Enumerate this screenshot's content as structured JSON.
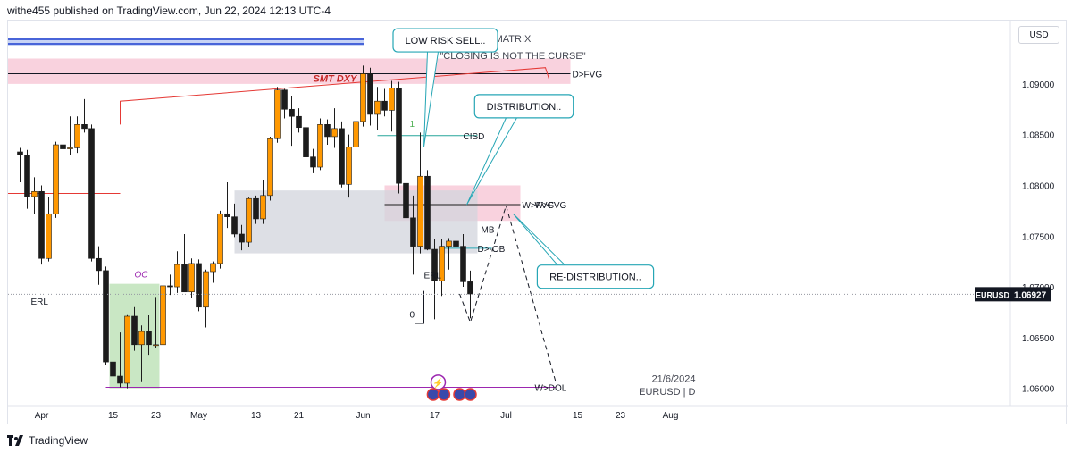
{
  "header": {
    "text": "withe455 published on TradingView.com, Jun 22, 2024 12:13 UTC-4"
  },
  "currency_button": {
    "label": "USD"
  },
  "footer": {
    "brand": "TradingView"
  },
  "colors": {
    "bull": "#ff9800",
    "bear": "#1c1c1c",
    "fvg_zone": "#f7c3d3",
    "ob_zone": "#d1d4dc",
    "oc_zone": "#b7dfb0",
    "callout": "#26a6b5",
    "dol_line": "#9c27b0",
    "smt_line": "#e53935",
    "cisd_line": "#26a69a",
    "price_label_bg": "#131722"
  },
  "chart_data": {
    "type": "candlestick",
    "symbol": "EURUSD",
    "timeframe": "D",
    "date_label": "21/6/2024",
    "titles": [
      "MATRIX",
      "\"CLOSING IS NOT THE CURSE\""
    ],
    "ylim": [
      1.059,
      1.0958
    ],
    "y_ticks": [
      "1.09000",
      "1.08500",
      "1.08000",
      "1.07500",
      "1.07000",
      "1.06500",
      "1.06000"
    ],
    "x_ticks": [
      {
        "label": "Apr",
        "bar": 3
      },
      {
        "label": "15",
        "bar": 13
      },
      {
        "label": "23",
        "bar": 19
      },
      {
        "label": "May",
        "bar": 25
      },
      {
        "label": "13",
        "bar": 33
      },
      {
        "label": "21",
        "bar": 39
      },
      {
        "label": "Jun",
        "bar": 48
      },
      {
        "label": "17",
        "bar": 58
      },
      {
        "label": "Jul",
        "bar": 68
      },
      {
        "label": "15",
        "bar": 78
      },
      {
        "label": "23",
        "bar": 84
      },
      {
        "label": "Aug",
        "bar": 91
      }
    ],
    "current_price": 1.06927,
    "current_label": "EURUSD",
    "candles": [
      {
        "o": 1.0833,
        "h": 1.0837,
        "l": 1.0803,
        "c": 1.083
      },
      {
        "o": 1.083,
        "h": 1.0835,
        "l": 1.0777,
        "c": 1.0789
      },
      {
        "o": 1.0789,
        "h": 1.0808,
        "l": 1.0772,
        "c": 1.0794
      },
      {
        "o": 1.0794,
        "h": 1.08,
        "l": 1.0722,
        "c": 1.0728
      },
      {
        "o": 1.0728,
        "h": 1.0789,
        "l": 1.0725,
        "c": 1.0772
      },
      {
        "o": 1.0772,
        "h": 1.0843,
        "l": 1.0768,
        "c": 1.084
      },
      {
        "o": 1.084,
        "h": 1.087,
        "l": 1.0832,
        "c": 1.0836
      },
      {
        "o": 1.0836,
        "h": 1.0868,
        "l": 1.083,
        "c": 1.0837
      },
      {
        "o": 1.0837,
        "h": 1.0868,
        "l": 1.0832,
        "c": 1.086
      },
      {
        "o": 1.086,
        "h": 1.0885,
        "l": 1.0852,
        "c": 1.0856
      },
      {
        "o": 1.0856,
        "h": 1.086,
        "l": 1.0725,
        "c": 1.0728
      },
      {
        "o": 1.0728,
        "h": 1.074,
        "l": 1.0702,
        "c": 1.0716
      },
      {
        "o": 1.0716,
        "h": 1.072,
        "l": 1.0623,
        "c": 1.0626
      },
      {
        "o": 1.0626,
        "h": 1.064,
        "l": 1.0602,
        "c": 1.0612
      },
      {
        "o": 1.0612,
        "h": 1.0655,
        "l": 1.0601,
        "c": 1.0605
      },
      {
        "o": 1.0605,
        "h": 1.0673,
        "l": 1.06,
        "c": 1.0671
      },
      {
        "o": 1.0671,
        "h": 1.068,
        "l": 1.0637,
        "c": 1.0643
      },
      {
        "o": 1.0643,
        "h": 1.0662,
        "l": 1.0607,
        "c": 1.0656
      },
      {
        "o": 1.0656,
        "h": 1.0672,
        "l": 1.0633,
        "c": 1.0643
      },
      {
        "o": 1.0643,
        "h": 1.069,
        "l": 1.064,
        "c": 1.0643
      },
      {
        "o": 1.0643,
        "h": 1.0703,
        "l": 1.0632,
        "c": 1.0701
      },
      {
        "o": 1.0701,
        "h": 1.0712,
        "l": 1.0692,
        "c": 1.07
      },
      {
        "o": 1.07,
        "h": 1.0735,
        "l": 1.0694,
        "c": 1.0722
      },
      {
        "o": 1.0722,
        "h": 1.0752,
        "l": 1.0698,
        "c": 1.0695
      },
      {
        "o": 1.0695,
        "h": 1.0728,
        "l": 1.0689,
        "c": 1.0723
      },
      {
        "o": 1.0723,
        "h": 1.0727,
        "l": 1.0676,
        "c": 1.068
      },
      {
        "o": 1.068,
        "h": 1.0717,
        "l": 1.066,
        "c": 1.0715
      },
      {
        "o": 1.0715,
        "h": 1.0725,
        "l": 1.0704,
        "c": 1.0723
      },
      {
        "o": 1.0723,
        "h": 1.0775,
        "l": 1.0718,
        "c": 1.0772
      },
      {
        "o": 1.0772,
        "h": 1.0803,
        "l": 1.0758,
        "c": 1.0769
      },
      {
        "o": 1.0769,
        "h": 1.0782,
        "l": 1.0749,
        "c": 1.0752
      },
      {
        "o": 1.0752,
        "h": 1.0761,
        "l": 1.0736,
        "c": 1.0744
      },
      {
        "o": 1.0744,
        "h": 1.0788,
        "l": 1.0739,
        "c": 1.0787
      },
      {
        "o": 1.0787,
        "h": 1.079,
        "l": 1.0762,
        "c": 1.0767
      },
      {
        "o": 1.0767,
        "h": 1.0805,
        "l": 1.0762,
        "c": 1.079
      },
      {
        "o": 1.079,
        "h": 1.0848,
        "l": 1.0785,
        "c": 1.0846
      },
      {
        "o": 1.0846,
        "h": 1.0897,
        "l": 1.0842,
        "c": 1.0894
      },
      {
        "o": 1.0894,
        "h": 1.0895,
        "l": 1.0866,
        "c": 1.0875
      },
      {
        "o": 1.0875,
        "h": 1.0888,
        "l": 1.0839,
        "c": 1.0868
      },
      {
        "o": 1.0868,
        "h": 1.0876,
        "l": 1.0852,
        "c": 1.0857
      },
      {
        "o": 1.0857,
        "h": 1.0868,
        "l": 1.0819,
        "c": 1.0828
      },
      {
        "o": 1.0828,
        "h": 1.0836,
        "l": 1.0812,
        "c": 1.0818
      },
      {
        "o": 1.0818,
        "h": 1.0866,
        "l": 1.0815,
        "c": 1.086
      },
      {
        "o": 1.086,
        "h": 1.0865,
        "l": 1.084,
        "c": 1.0848
      },
      {
        "o": 1.0848,
        "h": 1.0876,
        "l": 1.0837,
        "c": 1.0856
      },
      {
        "o": 1.0856,
        "h": 1.0863,
        "l": 1.0798,
        "c": 1.0801
      },
      {
        "o": 1.0801,
        "h": 1.085,
        "l": 1.0788,
        "c": 1.0838
      },
      {
        "o": 1.0838,
        "h": 1.0885,
        "l": 1.0833,
        "c": 1.0863
      },
      {
        "o": 1.0863,
        "h": 1.0918,
        "l": 1.0858,
        "c": 1.091
      },
      {
        "o": 1.091,
        "h": 1.0916,
        "l": 1.0859,
        "c": 1.087
      },
      {
        "o": 1.087,
        "h": 1.0897,
        "l": 1.0855,
        "c": 1.0883
      },
      {
        "o": 1.0883,
        "h": 1.0895,
        "l": 1.0868,
        "c": 1.0874
      },
      {
        "o": 1.0874,
        "h": 1.0903,
        "l": 1.0853,
        "c": 1.0896
      },
      {
        "o": 1.0896,
        "h": 1.0902,
        "l": 1.0792,
        "c": 1.0802
      },
      {
        "o": 1.0802,
        "h": 1.0822,
        "l": 1.076,
        "c": 1.0768
      },
      {
        "o": 1.0768,
        "h": 1.079,
        "l": 1.0712,
        "c": 1.074
      },
      {
        "o": 1.074,
        "h": 1.0852,
        "l": 1.0733,
        "c": 1.0809
      },
      {
        "o": 1.0809,
        "h": 1.0815,
        "l": 1.0736,
        "c": 1.0737
      },
      {
        "o": 1.0737,
        "h": 1.0747,
        "l": 1.0668,
        "c": 1.0706
      },
      {
        "o": 1.0706,
        "h": 1.0747,
        "l": 1.0691,
        "c": 1.074
      },
      {
        "o": 1.074,
        "h": 1.0748,
        "l": 1.0717,
        "c": 1.0745
      },
      {
        "o": 1.0745,
        "h": 1.0757,
        "l": 1.0721,
        "c": 1.074
      },
      {
        "o": 1.074,
        "h": 1.0752,
        "l": 1.07,
        "c": 1.0705
      },
      {
        "o": 1.0705,
        "h": 1.0716,
        "l": 1.0669,
        "c": 1.0693
      }
    ],
    "zones": [
      {
        "name": "D>FVG",
        "top": 1.0925,
        "bottom": 1.09,
        "bar_from": 0,
        "bar_to": 77,
        "color_key": "fvg_zone",
        "label": "D>FVG",
        "label_bar": 77
      },
      {
        "name": "W>FVG",
        "top": 1.08,
        "bottom": 1.0765,
        "bar_from": 51,
        "bar_to": 70,
        "color_key": "fvg_zone",
        "label": "W>FVG",
        "label_bar": 70
      },
      {
        "name": "order-block",
        "top": 1.0795,
        "bottom": 1.0733,
        "bar_from": 30,
        "bar_to": 64,
        "color_key": "ob_zone",
        "label": "",
        "label_bar": 0
      },
      {
        "name": "OC",
        "top": 1.0703,
        "bottom": 1.06,
        "bar_from": 12.5,
        "bar_to": 19.5,
        "color_key": "oc_zone",
        "label": "",
        "label_bar": 0
      }
    ],
    "levels": [
      {
        "name": "W>DOL",
        "price": 1.0601,
        "bar_from": 12,
        "bar_to": 75,
        "color_key": "dol_line",
        "label": "W>DOL",
        "label_bar": 72
      },
      {
        "name": "W>FVG-mid",
        "price": 1.0781,
        "bar_from": 51,
        "bar_to": 70,
        "color_key": "bear",
        "label": "W>FVG",
        "label_bar": 72
      },
      {
        "name": "CISD",
        "price": 1.0849,
        "bar_from": 50,
        "bar_to": 64,
        "color_key": "cisd_line",
        "label": "CISD",
        "label_bar": 62
      },
      {
        "name": "D>-OB",
        "price": 1.0738,
        "bar_from": 59,
        "bar_to": 66,
        "color_key": "callout",
        "label": "D>-OB",
        "label_bar": 64
      },
      {
        "name": "red-level",
        "price": 1.0792,
        "bar_from": 0,
        "bar_to": 14,
        "color_key": "smt_line",
        "label": "",
        "label_bar": 0
      }
    ],
    "labels": [
      {
        "text": "ERL",
        "bar": 1.5,
        "price": 1.0686
      },
      {
        "text": "ERL",
        "bar": 56.5,
        "price": 1.0712
      },
      {
        "text": "OC",
        "bar": 16,
        "price": 1.0713
      },
      {
        "text": "MB",
        "bar": 64.5,
        "price": 1.0757
      },
      {
        "text": "0",
        "bar": 54.5,
        "price": 1.0673
      },
      {
        "text": "1",
        "bar": 54.5,
        "price": 1.0861
      }
    ],
    "annotations": [
      {
        "text": "LOW RISK SELL..",
        "bar": 59.5,
        "price": 1.0943
      },
      {
        "text": "DISTRIBUTION..",
        "bar": 70.5,
        "price": 1.0878
      },
      {
        "text": "RE-DISTRIBUTION..",
        "bar": 80.5,
        "price": 1.071
      }
    ],
    "smt_label": "SMT DXY",
    "projection": [
      {
        "bar": 61.5,
        "price": 1.0693
      },
      {
        "bar": 63,
        "price": 1.0665
      },
      {
        "bar": 68,
        "price": 1.078
      },
      {
        "bar": 75,
        "price": 1.0605
      }
    ]
  }
}
